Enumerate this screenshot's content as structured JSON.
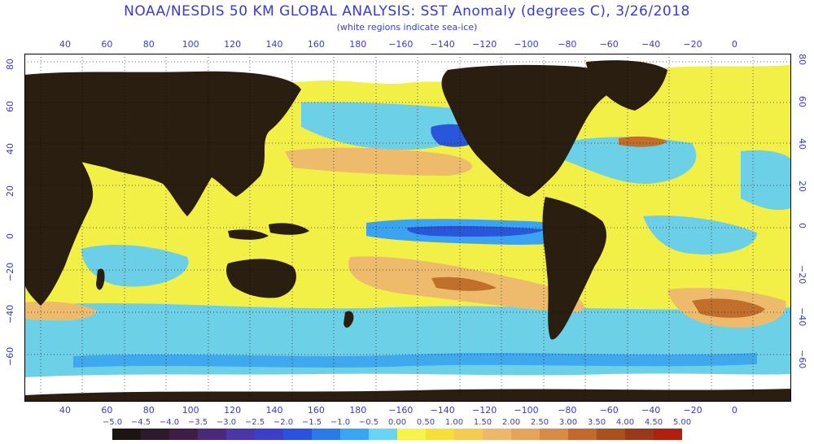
{
  "title": "NOAA/NESDIS 50 KM GLOBAL ANALYSIS: SST Anomaly (degrees C), 3/26/2018",
  "subtitle": "(white regions indicate sea-ice)",
  "axes": {
    "lon_ticks": [
      "40",
      "60",
      "80",
      "100",
      "120",
      "140",
      "160",
      "180",
      "−160",
      "−140",
      "−120",
      "−100",
      "−80",
      "−60",
      "−40",
      "−20",
      "0"
    ],
    "lat_ticks_left": [
      "80",
      "60",
      "40",
      "20",
      "0",
      "−20",
      "−40",
      "−60"
    ],
    "lat_ticks_right": [
      "80",
      "60",
      "40",
      "20",
      "0",
      "−20",
      "−40",
      "−60"
    ]
  },
  "colorbar": {
    "labels": [
      "−5.0",
      "−4.5",
      "−4.0",
      "−3.5",
      "−3.0",
      "−2.5",
      "−2.0",
      "−1.5",
      "−1.0",
      "−0.5",
      "0.00",
      "0.50",
      "1.00",
      "1.50",
      "2.00",
      "2.50",
      "3.00",
      "3.50",
      "4.00",
      "4.50",
      "5.00"
    ],
    "colors": [
      "#1c1410",
      "#2c1a2a",
      "#3c1e46",
      "#4a2a78",
      "#4a36a8",
      "#3a3ec8",
      "#2a52dc",
      "#2a7ae8",
      "#3aa6f0",
      "#6ad4f4",
      "#f4f44a",
      "#f4e038",
      "#f4cc52",
      "#eeb86a",
      "#e4a45c",
      "#d88a46",
      "#c06a2e",
      "#a8501e",
      "#983a1a",
      "#b02010"
    ]
  },
  "map_colors": {
    "land": "#2a1e10",
    "ice": "#ffffff",
    "neutral": "#f2f046",
    "cool": "#64cff0",
    "cold": "#3aa4f0",
    "very_cold": "#2a56dc",
    "warm": "#eebb6c",
    "hot": "#c26e2c"
  }
}
